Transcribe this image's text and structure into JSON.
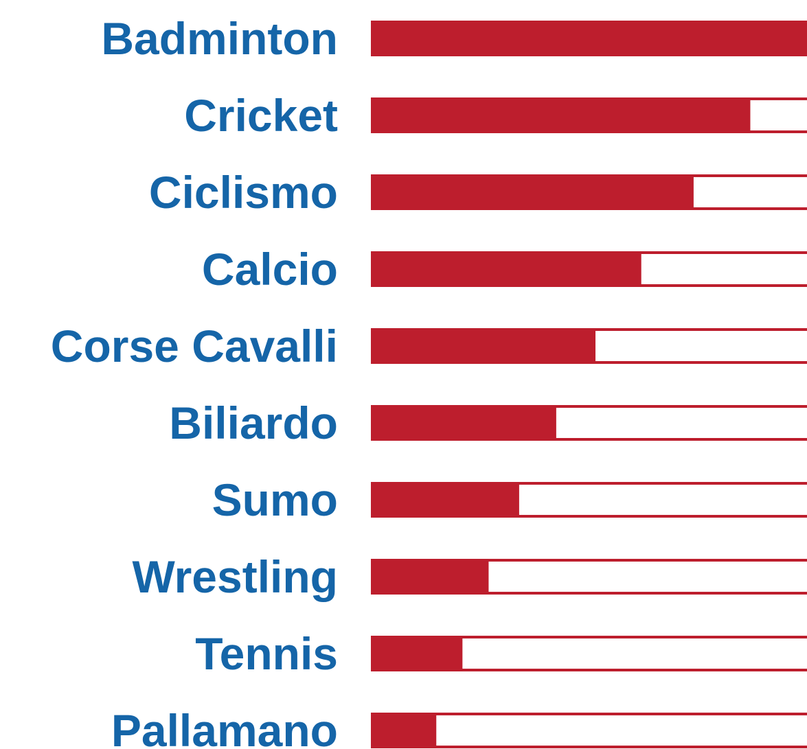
{
  "colors": {
    "label": "#1565a8",
    "bar": "#bd1e2d",
    "track_border": "#bd1e2d",
    "background": "#ffffff"
  },
  "chart_data": {
    "type": "bar",
    "orientation": "horizontal",
    "categories": [
      "Badminton",
      "Cricket",
      "Ciclismo",
      "Calcio",
      "Corse Cavalli",
      "Biliardo",
      "Sumo",
      "Wrestling",
      "Tennis",
      "Pallamano"
    ],
    "values": [
      100,
      87,
      74,
      62,
      51.5,
      42.5,
      34,
      27,
      21,
      15
    ],
    "xlim": [
      0,
      100
    ],
    "title": "",
    "xlabel": "",
    "ylabel": "",
    "grid": false,
    "legend": "none"
  }
}
